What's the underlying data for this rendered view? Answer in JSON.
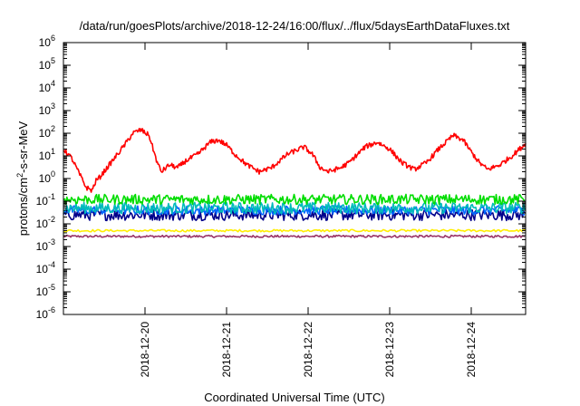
{
  "chart_data": {
    "type": "line",
    "title": "/data/run/goesPlots/archive/2018-12-24/16:00/flux/../flux/5daysEarthDataFluxes.txt",
    "xlabel": "Coordinated Universal Time (UTC)",
    "ylabel": {
      "base": "protons/cm",
      "sup": "2",
      "rest": "-s-sr-MeV"
    },
    "y_scale": "log",
    "ylim": [
      1e-06,
      1000000.0
    ],
    "xlim": [
      "2018-12-19 00:00",
      "2018-12-24 16:00"
    ],
    "grid": false,
    "legend": "none",
    "x_ticks": [
      "2018-12-20",
      "2018-12-21",
      "2018-12-22",
      "2018-12-23",
      "2018-12-24"
    ],
    "y_ticks": [
      {
        "base": "10",
        "exp": "-6"
      },
      {
        "base": "10",
        "exp": "-5"
      },
      {
        "base": "10",
        "exp": "-4"
      },
      {
        "base": "10",
        "exp": "-3"
      },
      {
        "base": "10",
        "exp": "-2"
      },
      {
        "base": "10",
        "exp": "-1"
      },
      {
        "base": "10",
        "exp": "0"
      },
      {
        "base": "10",
        "exp": "1"
      },
      {
        "base": "10",
        "exp": "2"
      },
      {
        "base": "10",
        "exp": "3"
      },
      {
        "base": "10",
        "exp": "4"
      },
      {
        "base": "10",
        "exp": "5"
      },
      {
        "base": "10",
        "exp": "6"
      }
    ],
    "series": [
      {
        "color": "#ff0000",
        "noise": 0.22,
        "points": [
          [
            0.0,
            20
          ],
          [
            0.1,
            8
          ],
          [
            0.2,
            1.5
          ],
          [
            0.28,
            0.4
          ],
          [
            0.35,
            0.3
          ],
          [
            0.4,
            0.8
          ],
          [
            0.45,
            1.2
          ],
          [
            0.6,
            6
          ],
          [
            0.75,
            30
          ],
          [
            0.85,
            100
          ],
          [
            0.95,
            140
          ],
          [
            1.05,
            80
          ],
          [
            1.1,
            20
          ],
          [
            1.15,
            5
          ],
          [
            1.2,
            2
          ],
          [
            1.3,
            4
          ],
          [
            1.4,
            3
          ],
          [
            1.5,
            6
          ],
          [
            1.65,
            12
          ],
          [
            1.8,
            40
          ],
          [
            1.9,
            50
          ],
          [
            2.0,
            30
          ],
          [
            2.1,
            12
          ],
          [
            2.25,
            4
          ],
          [
            2.4,
            2
          ],
          [
            2.55,
            3
          ],
          [
            2.75,
            12
          ],
          [
            2.95,
            25
          ],
          [
            3.05,
            12
          ],
          [
            3.15,
            3
          ],
          [
            3.25,
            2
          ],
          [
            3.4,
            3
          ],
          [
            3.5,
            5
          ],
          [
            3.7,
            25
          ],
          [
            3.85,
            40
          ],
          [
            4.0,
            20
          ],
          [
            4.15,
            5
          ],
          [
            4.3,
            2.5
          ],
          [
            4.45,
            5
          ],
          [
            4.6,
            20
          ],
          [
            4.78,
            80
          ],
          [
            4.9,
            50
          ],
          [
            5.0,
            15
          ],
          [
            5.1,
            5
          ],
          [
            5.2,
            2.5
          ],
          [
            5.35,
            4
          ],
          [
            5.5,
            10
          ],
          [
            5.667,
            35
          ]
        ]
      },
      {
        "color": "#00dd00",
        "level": 0.12,
        "noise": 0.22,
        "period": 0.014
      },
      {
        "color": "#00bbbb",
        "level": 0.05,
        "noise": 0.25,
        "period": 0.014
      },
      {
        "color": "#0066ff",
        "level": 0.04,
        "noise": 0.2,
        "period": 0.014
      },
      {
        "color": "#00008b",
        "level": 0.025,
        "noise": 0.25,
        "period": 0.014
      },
      {
        "color": "#ffee00",
        "level": 0.005,
        "noise": 0.05,
        "period": 0.02
      },
      {
        "color": "#993366",
        "level": 0.0028,
        "noise": 0.05,
        "period": 0.015
      }
    ]
  }
}
